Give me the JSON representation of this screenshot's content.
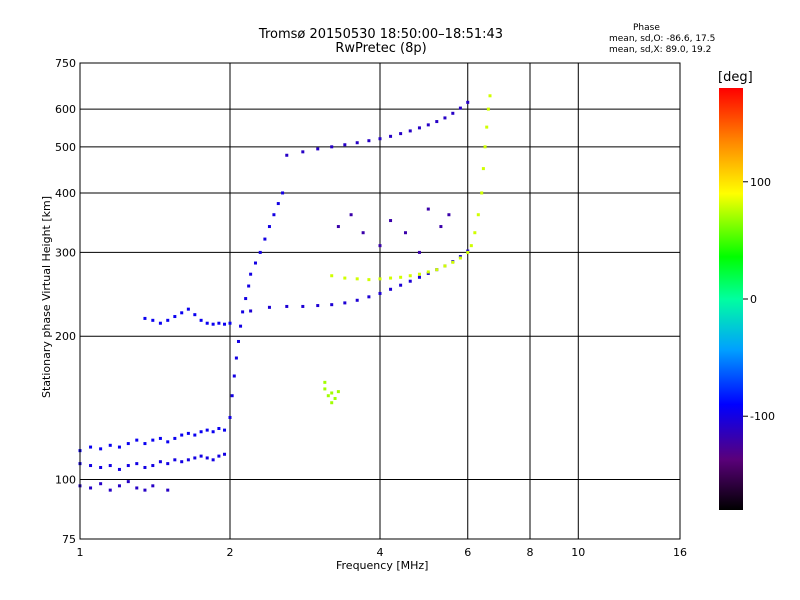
{
  "header": {
    "title_line1": "Tromsø 20150530 18:50:00–18:51:43",
    "title_line2": "RwPretec (8p)"
  },
  "phase_box": {
    "title": "Phase",
    "o_mode": "mean, sd,O: -86.6, 17.5",
    "x_mode": "mean, sd,X: 89.0, 19.2"
  },
  "colorbar": {
    "unit": "[deg]",
    "ticks": [
      "100",
      "0",
      "-100"
    ],
    "tick_values": [
      100,
      0,
      -100
    ],
    "range": [
      -180,
      180
    ]
  },
  "chart_data": {
    "type": "scatter",
    "title": "Tromsø 20150530 18:50:00–18:51:43",
    "subtitle": "RwPretec (8p)",
    "xlabel": "Frequency [MHz]",
    "ylabel": "Stationary phase Virtual Height [km]",
    "x_scale": "log",
    "y_scale": "log",
    "xlim": [
      1,
      16
    ],
    "ylim": [
      75,
      750
    ],
    "x_ticks": [
      1,
      2,
      4,
      6,
      8,
      10,
      16
    ],
    "x_tick_labels": [
      "1",
      "2",
      "4",
      "6",
      "8",
      "10",
      "16"
    ],
    "y_ticks": [
      75,
      100,
      200,
      300,
      400,
      500,
      600,
      750
    ],
    "y_tick_labels": [
      "75",
      "100",
      "200",
      "300",
      "400",
      "500",
      "600",
      "750"
    ],
    "grid": true,
    "color_by": "phase [deg]",
    "series": [
      {
        "phase": -100,
        "points": [
          [
            1.0,
            108
          ],
          [
            1.05,
            107
          ],
          [
            1.1,
            106
          ],
          [
            1.15,
            107
          ],
          [
            1.2,
            105
          ],
          [
            1.25,
            107
          ],
          [
            1.3,
            108
          ],
          [
            1.35,
            106
          ],
          [
            1.4,
            107
          ],
          [
            1.45,
            109
          ],
          [
            1.5,
            108
          ],
          [
            1.55,
            110
          ],
          [
            1.6,
            109
          ],
          [
            1.65,
            110
          ],
          [
            1.7,
            111
          ],
          [
            1.75,
            112
          ],
          [
            1.8,
            111
          ],
          [
            1.85,
            110
          ],
          [
            1.9,
            112
          ],
          [
            1.95,
            113
          ]
        ]
      },
      {
        "phase": -95,
        "points": [
          [
            1.0,
            115
          ],
          [
            1.05,
            117
          ],
          [
            1.1,
            116
          ],
          [
            1.15,
            118
          ],
          [
            1.2,
            117
          ],
          [
            1.25,
            119
          ],
          [
            1.3,
            121
          ],
          [
            1.35,
            119
          ],
          [
            1.4,
            121
          ],
          [
            1.45,
            122
          ],
          [
            1.5,
            120
          ],
          [
            1.55,
            122
          ],
          [
            1.6,
            124
          ],
          [
            1.65,
            125
          ],
          [
            1.7,
            124
          ],
          [
            1.75,
            126
          ],
          [
            1.8,
            127
          ],
          [
            1.85,
            126
          ],
          [
            1.9,
            128
          ],
          [
            1.95,
            127
          ]
        ]
      },
      {
        "phase": -110,
        "points": [
          [
            1.0,
            97
          ],
          [
            1.05,
            96
          ],
          [
            1.1,
            98
          ],
          [
            1.15,
            95
          ],
          [
            1.2,
            97
          ],
          [
            1.25,
            99
          ],
          [
            1.3,
            96
          ],
          [
            1.35,
            95
          ],
          [
            1.4,
            97
          ],
          [
            1.5,
            95
          ]
        ]
      },
      {
        "phase": -100,
        "points": [
          [
            2.0,
            135
          ],
          [
            2.02,
            150
          ],
          [
            2.04,
            165
          ],
          [
            2.06,
            180
          ],
          [
            2.08,
            195
          ],
          [
            2.1,
            210
          ],
          [
            2.12,
            225
          ],
          [
            2.15,
            240
          ],
          [
            2.18,
            255
          ],
          [
            2.2,
            270
          ],
          [
            2.25,
            285
          ],
          [
            2.3,
            300
          ],
          [
            2.35,
            320
          ],
          [
            2.4,
            340
          ],
          [
            2.45,
            360
          ],
          [
            2.5,
            380
          ],
          [
            2.55,
            400
          ]
        ]
      },
      {
        "phase": -95,
        "points": [
          [
            1.35,
            218
          ],
          [
            1.4,
            216
          ],
          [
            1.45,
            213
          ],
          [
            1.5,
            216
          ],
          [
            1.55,
            220
          ],
          [
            1.6,
            224
          ],
          [
            1.65,
            228
          ],
          [
            1.7,
            222
          ],
          [
            1.75,
            216
          ],
          [
            1.8,
            213
          ],
          [
            1.85,
            212
          ],
          [
            1.9,
            213
          ],
          [
            1.95,
            212
          ],
          [
            2.0,
            213
          ]
        ]
      },
      {
        "phase": -105,
        "points": [
          [
            2.2,
            226
          ],
          [
            2.4,
            230
          ],
          [
            2.6,
            231
          ],
          [
            2.8,
            231
          ],
          [
            3.0,
            232
          ],
          [
            3.2,
            233
          ],
          [
            3.4,
            235
          ],
          [
            3.6,
            238
          ],
          [
            3.8,
            242
          ],
          [
            4.0,
            246
          ],
          [
            4.2,
            251
          ],
          [
            4.4,
            256
          ],
          [
            4.6,
            261
          ],
          [
            4.8,
            266
          ],
          [
            5.0,
            271
          ],
          [
            5.2,
            276
          ],
          [
            5.4,
            281
          ],
          [
            5.6,
            287
          ],
          [
            5.8,
            294
          ],
          [
            6.0,
            302
          ]
        ]
      },
      {
        "phase": -110,
        "points": [
          [
            2.6,
            480
          ],
          [
            2.8,
            488
          ],
          [
            3.0,
            495
          ],
          [
            3.2,
            500
          ],
          [
            3.4,
            505
          ],
          [
            3.6,
            510
          ],
          [
            3.8,
            515
          ],
          [
            4.0,
            520
          ],
          [
            4.2,
            526
          ],
          [
            4.4,
            533
          ],
          [
            4.6,
            540
          ],
          [
            4.8,
            548
          ],
          [
            5.0,
            556
          ],
          [
            5.2,
            565
          ],
          [
            5.4,
            575
          ],
          [
            5.6,
            588
          ],
          [
            5.8,
            603
          ],
          [
            6.0,
            620
          ]
        ]
      },
      {
        "phase": 80,
        "points": [
          [
            3.2,
            268
          ],
          [
            3.4,
            265
          ],
          [
            3.6,
            264
          ],
          [
            3.8,
            263
          ],
          [
            4.0,
            264
          ],
          [
            4.2,
            265
          ],
          [
            4.4,
            266
          ],
          [
            4.6,
            268
          ],
          [
            4.8,
            270
          ],
          [
            5.0,
            273
          ],
          [
            5.2,
            276
          ],
          [
            5.4,
            281
          ],
          [
            5.6,
            286
          ],
          [
            5.8,
            292
          ],
          [
            6.0,
            300
          ],
          [
            6.1,
            310
          ],
          [
            6.2,
            330
          ],
          [
            6.3,
            360
          ],
          [
            6.4,
            400
          ],
          [
            6.45,
            450
          ],
          [
            6.5,
            500
          ],
          [
            6.55,
            550
          ],
          [
            6.6,
            600
          ],
          [
            6.65,
            640
          ]
        ]
      },
      {
        "phase": 70,
        "points": [
          [
            3.1,
            155
          ],
          [
            3.15,
            150
          ],
          [
            3.2,
            152
          ],
          [
            3.25,
            148
          ],
          [
            3.3,
            153
          ],
          [
            3.2,
            145
          ],
          [
            3.1,
            160
          ]
        ]
      },
      {
        "phase": -120,
        "points": [
          [
            3.3,
            340
          ],
          [
            3.5,
            360
          ],
          [
            3.7,
            330
          ],
          [
            4.0,
            310
          ],
          [
            4.2,
            350
          ],
          [
            4.5,
            330
          ],
          [
            4.8,
            300
          ],
          [
            5.0,
            370
          ],
          [
            5.3,
            340
          ],
          [
            5.5,
            360
          ]
        ]
      }
    ]
  }
}
